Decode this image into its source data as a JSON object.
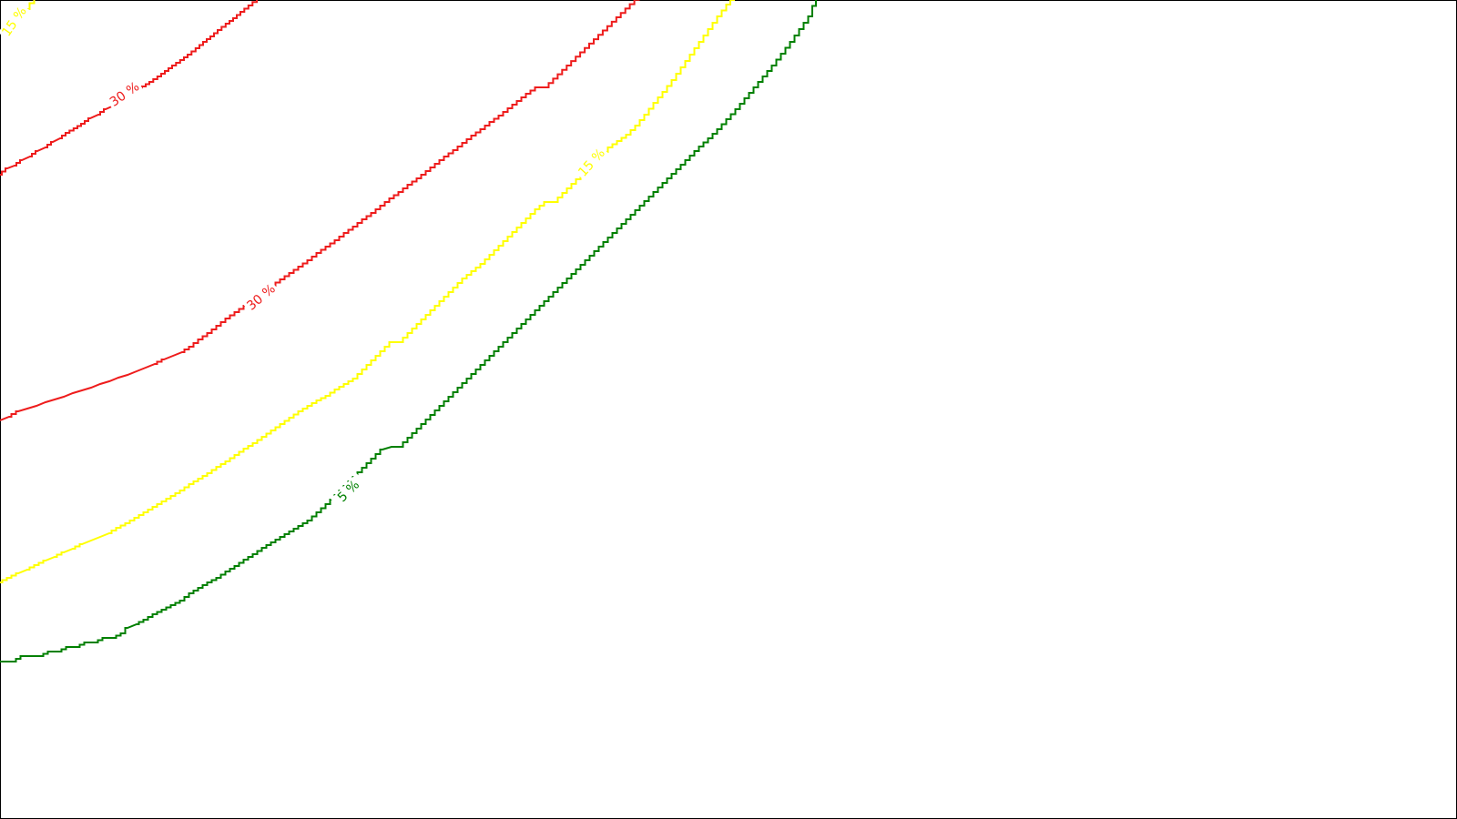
{
  "chart_data": {
    "type": "contour",
    "grid": false,
    "series": [
      {
        "name": "30 %",
        "color": "#ee1c1c"
      },
      {
        "name": "15 %",
        "color": "#ffff00"
      },
      {
        "name": "5 %",
        "color": "#008000"
      }
    ],
    "labels": [
      {
        "text": "15 %",
        "series": "15 %"
      },
      {
        "text": "30 %",
        "series": "30 %"
      },
      {
        "text": "30 %",
        "series": "30 %"
      },
      {
        "text": "15 %",
        "series": "15 %"
      },
      {
        "text": "5 %",
        "series": "5 %"
      }
    ]
  }
}
